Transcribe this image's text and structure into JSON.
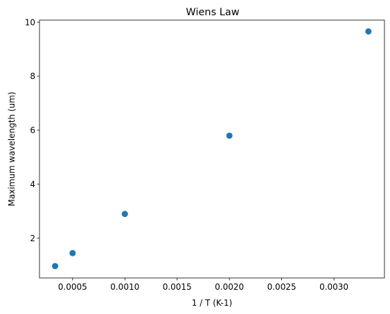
{
  "chart_data": {
    "type": "scatter",
    "title": "Wiens Law",
    "xlabel": "1 / T (K-1)",
    "ylabel": "Maximum wavelength (um)",
    "xlim": [
      0.0001833,
      0.0034833
    ],
    "ylim": [
      0.53,
      10.08
    ],
    "xticks": [
      {
        "value": 0.0005,
        "label": "0.0005"
      },
      {
        "value": 0.001,
        "label": "0.0010"
      },
      {
        "value": 0.0015,
        "label": "0.0015"
      },
      {
        "value": 0.002,
        "label": "0.0020"
      },
      {
        "value": 0.0025,
        "label": "0.0025"
      },
      {
        "value": 0.003,
        "label": "0.0030"
      }
    ],
    "yticks": [
      {
        "value": 2,
        "label": "2"
      },
      {
        "value": 4,
        "label": "4"
      },
      {
        "value": 6,
        "label": "6"
      },
      {
        "value": 8,
        "label": "8"
      },
      {
        "value": 10,
        "label": "10"
      }
    ],
    "series": [
      {
        "color": "#1f77b4",
        "x": [
          0.000333,
          0.0005,
          0.001,
          0.002,
          0.00333
        ],
        "y": [
          0.97,
          1.45,
          2.9,
          5.8,
          9.66
        ]
      }
    ],
    "grid": false,
    "legend": "none"
  }
}
